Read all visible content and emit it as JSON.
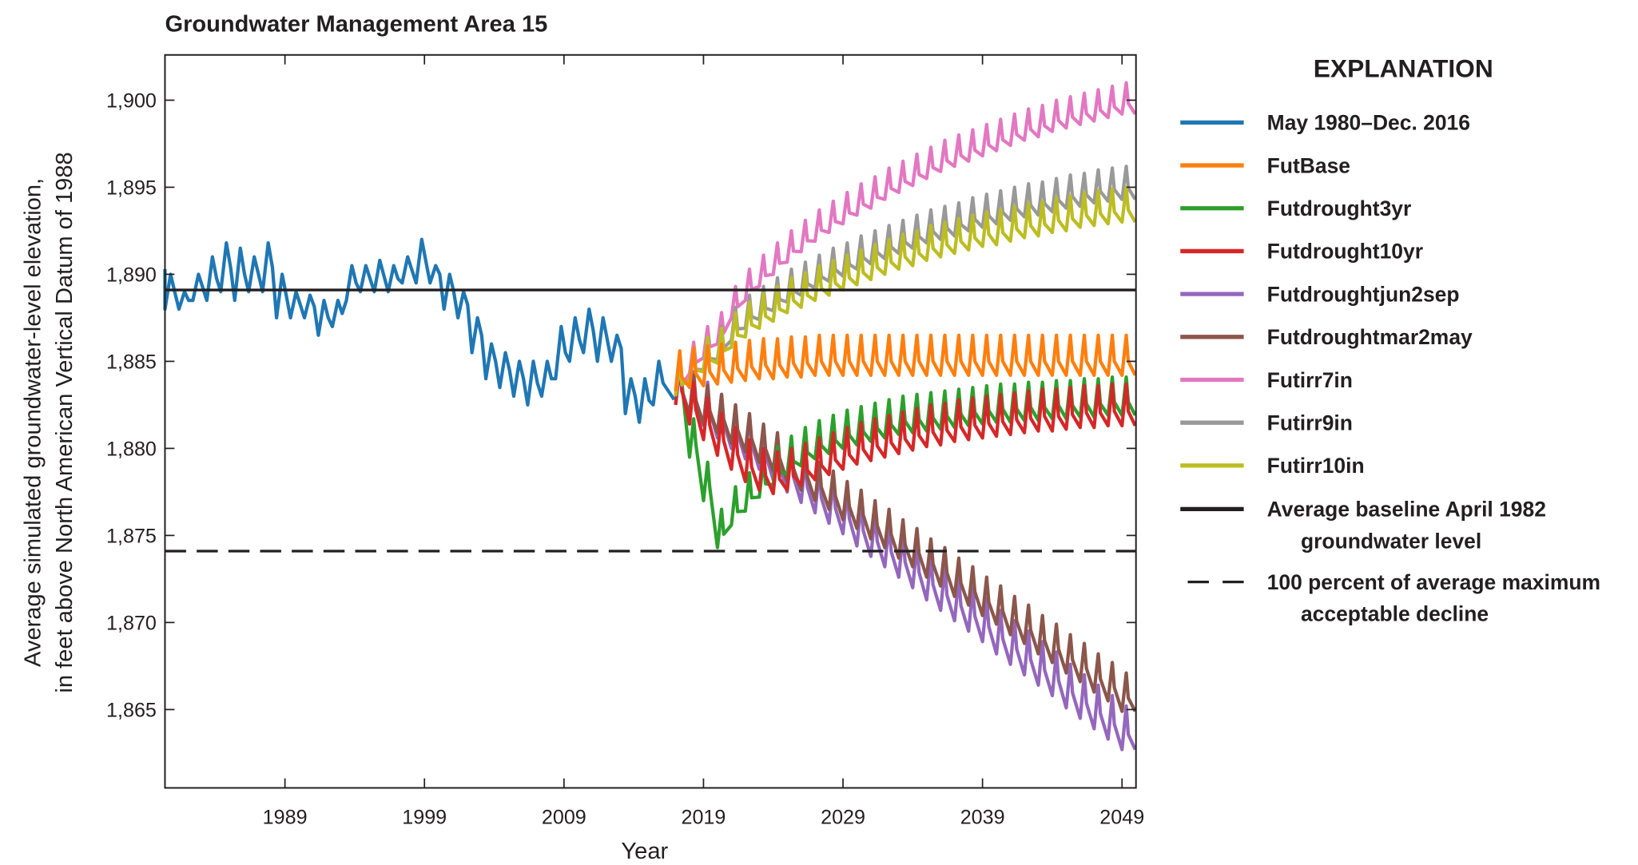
{
  "chart_data": {
    "type": "line",
    "title": "Groundwater Management Area 15",
    "xlabel": "Year",
    "ylabel": [
      "Average simulated groundwater-level elevation,",
      "in feet above North American Vertical Datum of 1988"
    ],
    "xlim": [
      1980.4,
      2050
    ],
    "ylim": [
      1860.5,
      1902.6
    ],
    "x_ticks": [
      1989,
      1999,
      2009,
      2019,
      2029,
      2039,
      2049
    ],
    "x_tick_labels": [
      "1989",
      "1999",
      "2009",
      "2019",
      "2029",
      "2039",
      "2049"
    ],
    "y_ticks": [
      1865,
      1870,
      1875,
      1880,
      1885,
      1890,
      1895,
      1900
    ],
    "y_tick_labels": [
      "1,865",
      "1,870",
      "1,875",
      "1,880",
      "1,885",
      "1,890",
      "1,895",
      "1,900"
    ],
    "grid": false,
    "legend": {
      "title": "EXPLANATION",
      "placement": "right, outside plot"
    },
    "historical": {
      "name": "May 1980–Dec. 2016",
      "color": "#1f77b4",
      "years": [
        1981,
        1982,
        1983,
        1984,
        1985,
        1986,
        1987,
        1988,
        1989,
        1990,
        1991,
        1992,
        1993,
        1994,
        1995,
        1996,
        1997,
        1998,
        1999,
        2000,
        2001,
        2002,
        2003,
        2004,
        2005,
        2006,
        2007,
        2008,
        2009,
        2010,
        2011,
        2012,
        2013,
        2014,
        2015,
        2016
      ],
      "annual_low": [
        1888,
        1888,
        1888.5,
        1888.5,
        1889,
        1888.5,
        1889,
        1889,
        1887.5,
        1887.5,
        1887.5,
        1886.5,
        1887,
        1888.5,
        1889,
        1889,
        1889,
        1889.5,
        1889.5,
        1889.5,
        1888,
        1887.5,
        1885.5,
        1884,
        1883.5,
        1883,
        1882.5,
        1883,
        1884,
        1885,
        1885.5,
        1885,
        1885,
        1882,
        1881.5,
        1882.5
      ],
      "annual_high": [
        1890,
        1889,
        1890,
        1891,
        1891.8,
        1891.5,
        1891,
        1891.8,
        1890,
        1889,
        1888.8,
        1888.5,
        1888.5,
        1890.5,
        1890.5,
        1890.8,
        1890.5,
        1891,
        1892,
        1890.5,
        1890,
        1889,
        1887.5,
        1886,
        1885.5,
        1885,
        1885,
        1885,
        1887,
        1887.5,
        1888,
        1887.5,
        1886.5,
        1884,
        1884,
        1885
      ]
    },
    "future_years": [
      2017,
      2018,
      2019,
      2020,
      2021,
      2022,
      2023,
      2024,
      2025,
      2026,
      2027,
      2028,
      2029,
      2030,
      2031,
      2032,
      2033,
      2034,
      2035,
      2036,
      2037,
      2038,
      2039,
      2040,
      2041,
      2042,
      2043,
      2044,
      2045,
      2046,
      2047,
      2048,
      2049
    ],
    "series": [
      {
        "name": "FutBase",
        "color": "#ff7f0e",
        "seasonal_rise": 2.3,
        "annual_low": [
          1883.3,
          1883.5,
          1883.6,
          1883.7,
          1883.8,
          1883.9,
          1884.0,
          1884.0,
          1884.1,
          1884.1,
          1884.2,
          1884.2,
          1884.2,
          1884.2,
          1884.2,
          1884.2,
          1884.2,
          1884.2,
          1884.2,
          1884.2,
          1884.2,
          1884.2,
          1884.2,
          1884.2,
          1884.2,
          1884.2,
          1884.2,
          1884.2,
          1884.2,
          1884.2,
          1884.2,
          1884.2,
          1884.2
        ]
      },
      {
        "name": "Futdrought3yr",
        "color": "#2ca02c",
        "seasonal_rise": 2.2,
        "annual_low": [
          1883.0,
          1879.5,
          1877.0,
          1874.3,
          1875.6,
          1876.4,
          1877.2,
          1877.9,
          1878.5,
          1879.0,
          1879.4,
          1879.7,
          1880.0,
          1880.2,
          1880.4,
          1880.6,
          1880.8,
          1880.9,
          1881.0,
          1881.1,
          1881.2,
          1881.3,
          1881.4,
          1881.5,
          1881.5,
          1881.6,
          1881.6,
          1881.7,
          1881.7,
          1881.8,
          1881.8,
          1881.9,
          1881.9
        ]
      },
      {
        "name": "Futdrought10yr",
        "color": "#d62728",
        "seasonal_rise": 2.4,
        "annual_low": [
          1882.5,
          1881.4,
          1880.5,
          1879.6,
          1878.8,
          1878.1,
          1877.6,
          1877.4,
          1877.6,
          1877.9,
          1878.2,
          1878.5,
          1878.8,
          1879.1,
          1879.3,
          1879.5,
          1879.7,
          1879.9,
          1880.1,
          1880.2,
          1880.4,
          1880.5,
          1880.6,
          1880.7,
          1880.8,
          1880.9,
          1881.0,
          1881.0,
          1881.1,
          1881.2,
          1881.2,
          1881.3,
          1881.3
        ]
      },
      {
        "name": "Futdroughtjun2sep",
        "color": "#9467bd",
        "seasonal_rise": 2.5,
        "annual_low": [
          1882.5,
          1881.9,
          1881.3,
          1880.6,
          1880.0,
          1879.4,
          1878.8,
          1878.2,
          1877.5,
          1876.9,
          1876.3,
          1875.7,
          1875.1,
          1874.4,
          1873.8,
          1873.2,
          1872.6,
          1872.0,
          1871.3,
          1870.7,
          1870.1,
          1869.5,
          1868.9,
          1868.2,
          1867.6,
          1867.0,
          1866.4,
          1865.8,
          1865.1,
          1864.5,
          1863.9,
          1863.3,
          1862.7
        ]
      },
      {
        "name": "Futdroughtmar2may",
        "color": "#8c564b",
        "seasonal_rise": 2.2,
        "annual_low": [
          1882.5,
          1882.0,
          1881.4,
          1880.9,
          1880.3,
          1879.8,
          1879.2,
          1878.7,
          1878.1,
          1877.6,
          1877.0,
          1876.5,
          1875.9,
          1875.4,
          1874.8,
          1874.3,
          1873.7,
          1873.2,
          1872.6,
          1872.1,
          1871.5,
          1871.0,
          1870.4,
          1869.9,
          1869.3,
          1868.8,
          1868.2,
          1867.7,
          1867.1,
          1866.6,
          1866.0,
          1865.5,
          1864.9
        ]
      },
      {
        "name": "Futirr7in",
        "color": "#e377c2",
        "seasonal_rise": 1.8,
        "annual_low": [
          1883.0,
          1884.3,
          1885.2,
          1886.0,
          1887.5,
          1888.5,
          1889.3,
          1890.0,
          1890.7,
          1891.3,
          1891.9,
          1892.4,
          1892.9,
          1893.4,
          1893.8,
          1894.3,
          1894.7,
          1895.1,
          1895.5,
          1895.9,
          1896.2,
          1896.5,
          1896.8,
          1897.1,
          1897.4,
          1897.7,
          1897.9,
          1898.2,
          1898.4,
          1898.6,
          1898.8,
          1899.0,
          1899.2
        ]
      },
      {
        "name": "Futirr9in",
        "color": "#999999",
        "seasonal_rise": 1.9,
        "annual_low": [
          1883.0,
          1883.9,
          1884.5,
          1885.1,
          1886.2,
          1886.9,
          1887.4,
          1887.9,
          1888.4,
          1888.8,
          1889.2,
          1889.6,
          1889.9,
          1890.3,
          1890.6,
          1890.9,
          1891.2,
          1891.5,
          1891.8,
          1892.0,
          1892.2,
          1892.5,
          1892.7,
          1892.9,
          1893.1,
          1893.3,
          1893.4,
          1893.6,
          1893.8,
          1893.9,
          1894.1,
          1894.2,
          1894.3
        ]
      },
      {
        "name": "Futirr10in",
        "color": "#bcbd22",
        "seasonal_rise": 2.0,
        "annual_low": [
          1883.0,
          1883.8,
          1884.4,
          1884.9,
          1885.8,
          1886.4,
          1886.9,
          1887.3,
          1887.8,
          1888.1,
          1888.5,
          1888.8,
          1889.1,
          1889.4,
          1889.7,
          1890.0,
          1890.3,
          1890.5,
          1890.8,
          1891.0,
          1891.2,
          1891.4,
          1891.6,
          1891.7,
          1891.9,
          1892.1,
          1892.2,
          1892.4,
          1892.5,
          1892.7,
          1892.8,
          1892.9,
          1893.0
        ]
      }
    ],
    "reference_lines": [
      {
        "name": [
          "Average baseline April 1982",
          "groundwater level"
        ],
        "value": 1889.1,
        "style": "solid",
        "color": "#231f20"
      },
      {
        "name": [
          "100 percent of average maximum",
          "acceptable decline"
        ],
        "value": 1874.1,
        "style": "dashed",
        "color": "#231f20"
      }
    ]
  }
}
